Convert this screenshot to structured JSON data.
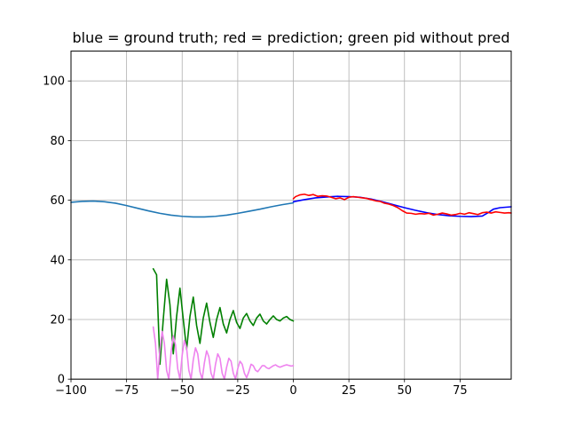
{
  "chart_data": {
    "type": "line",
    "title": "blue = ground truth; red = prediction; green pid without pred",
    "xlabel": "",
    "ylabel": "",
    "xlim": [
      -100,
      98
    ],
    "ylim": [
      0,
      110
    ],
    "grid": true,
    "x_ticks": [
      -100,
      -75,
      -50,
      -25,
      0,
      25,
      50,
      75
    ],
    "x_tick_labels": [
      "−100",
      "−75",
      "−50",
      "−25",
      "0",
      "25",
      "50",
      "75"
    ],
    "y_ticks": [
      0,
      20,
      40,
      60,
      80,
      100
    ],
    "y_tick_labels": [
      "0",
      "20",
      "40",
      "60",
      "80",
      "100"
    ],
    "series": [
      {
        "color": "#1f77b4",
        "x": [
          -100,
          -95,
          -90,
          -85,
          -80,
          -75,
          -70,
          -65,
          -60,
          -55,
          -50,
          -45,
          -40,
          -35,
          -30,
          -25,
          -20,
          -15,
          -10,
          -5,
          0
        ],
        "y": [
          59.3,
          59.6,
          59.7,
          59.5,
          59.0,
          58.2,
          57.3,
          56.4,
          55.6,
          55.0,
          54.6,
          54.4,
          54.4,
          54.6,
          55.0,
          55.6,
          56.3,
          57.0,
          57.8,
          58.5,
          59.1
        ]
      },
      {
        "color": "#0000ff",
        "x": [
          0,
          5,
          10,
          15,
          20,
          25,
          30,
          35,
          40,
          45,
          50,
          55,
          60,
          65,
          70,
          75,
          80,
          85,
          88,
          90,
          93,
          98
        ],
        "y": [
          59.5,
          60.2,
          60.8,
          61.1,
          61.3,
          61.2,
          61.0,
          60.4,
          59.5,
          58.5,
          57.5,
          56.6,
          55.8,
          55.2,
          54.8,
          54.6,
          54.5,
          54.7,
          56.0,
          57.0,
          57.5,
          57.8
        ]
      },
      {
        "color": "#ff0000",
        "x": [
          0,
          1,
          2,
          3,
          5,
          7,
          9,
          11,
          13,
          15,
          17,
          19,
          21,
          23,
          25,
          27,
          29,
          31,
          33,
          35,
          37,
          39,
          41,
          43,
          45,
          47,
          49,
          51,
          53,
          55,
          57,
          59,
          61,
          63,
          65,
          67,
          69,
          71,
          73,
          75,
          77,
          79,
          81,
          83,
          85,
          87,
          89,
          91,
          93,
          95,
          97,
          98
        ],
        "y": [
          60.5,
          61.2,
          61.5,
          61.8,
          62.0,
          61.6,
          61.9,
          61.3,
          61.5,
          61.4,
          61.0,
          60.5,
          60.8,
          60.2,
          61.0,
          61.2,
          61.0,
          60.8,
          60.6,
          60.2,
          59.8,
          59.6,
          59.0,
          58.7,
          58.2,
          57.5,
          56.5,
          55.7,
          55.6,
          55.3,
          55.5,
          55.4,
          55.6,
          55.0,
          55.3,
          55.7,
          55.4,
          55.0,
          55.2,
          55.6,
          55.3,
          55.8,
          55.5,
          55.2,
          55.8,
          56.0,
          55.7,
          56.1,
          55.9,
          55.7,
          55.8,
          55.7
        ]
      },
      {
        "color": "#008000",
        "x": [
          -63,
          -61.5,
          -60,
          -58.5,
          -57,
          -55.5,
          -54,
          -52.5,
          -51,
          -49.5,
          -48,
          -46.5,
          -45,
          -43.5,
          -42,
          -40.5,
          -39,
          -37.5,
          -36,
          -34.5,
          -33,
          -31.5,
          -30,
          -28.5,
          -27,
          -25.5,
          -24,
          -22.5,
          -21,
          -19.5,
          -18,
          -16.5,
          -15,
          -13.5,
          -12,
          -10.5,
          -9,
          -7.5,
          -6,
          -4.5,
          -3,
          -1.5,
          0
        ],
        "y": [
          37.0,
          35.0,
          5.0,
          20.0,
          33.5,
          25.0,
          8.5,
          21.0,
          30.5,
          20.0,
          10.0,
          21.0,
          27.5,
          18.0,
          12.0,
          20.5,
          25.5,
          19.0,
          14.0,
          20.0,
          24.0,
          18.5,
          15.5,
          20.0,
          23.0,
          19.0,
          17.0,
          20.5,
          22.0,
          19.5,
          18.0,
          20.5,
          21.8,
          19.5,
          18.5,
          20.0,
          21.2,
          20.0,
          19.5,
          20.5,
          21.0,
          20.0,
          19.5
        ]
      },
      {
        "color": "#ee82ee",
        "x": [
          -63,
          -62,
          -61,
          -60,
          -59,
          -58,
          -57,
          -56,
          -55,
          -54,
          -53,
          -52,
          -51,
          -50,
          -49,
          -48,
          -47,
          -46,
          -45,
          -44,
          -43,
          -42,
          -41,
          -40,
          -39,
          -38,
          -37,
          -36,
          -35,
          -34,
          -33,
          -32,
          -31,
          -30,
          -29,
          -28,
          -27,
          -26,
          -25,
          -24,
          -23,
          -22,
          -21,
          -20,
          -19,
          -18,
          -17,
          -16,
          -15,
          -14,
          -13,
          -12,
          -11,
          -10,
          -9,
          -8,
          -7,
          -6,
          -5,
          -4,
          -3,
          -2,
          -1,
          0
        ],
        "y": [
          17.5,
          12.0,
          0.0,
          10.0,
          16.0,
          12.0,
          3.0,
          0.0,
          9.0,
          14.5,
          11.5,
          3.5,
          0.0,
          8.0,
          13.0,
          10.5,
          3.0,
          0.0,
          6.5,
          10.5,
          8.5,
          2.5,
          0.0,
          5.5,
          9.5,
          7.5,
          2.0,
          0.0,
          5.0,
          8.5,
          7.0,
          2.0,
          0.0,
          4.0,
          7.0,
          6.0,
          2.0,
          0.0,
          3.5,
          6.0,
          5.0,
          2.0,
          0.5,
          2.5,
          5.0,
          4.5,
          3.0,
          2.5,
          3.5,
          4.5,
          4.5,
          3.8,
          3.5,
          4.0,
          4.5,
          4.8,
          4.3,
          4.0,
          4.3,
          4.6,
          4.8,
          4.6,
          4.4,
          4.5
        ]
      }
    ]
  }
}
